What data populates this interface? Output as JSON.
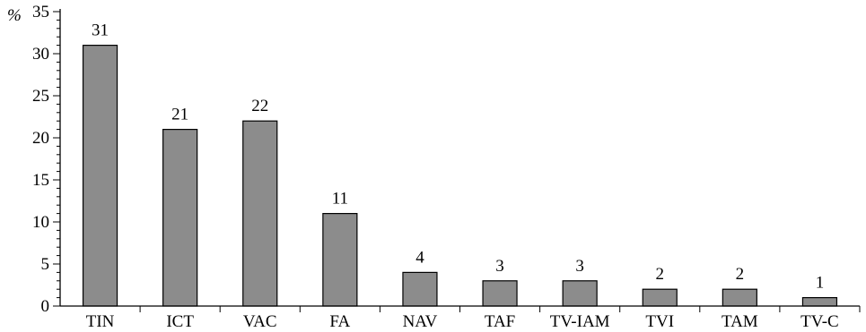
{
  "chart_data": {
    "type": "bar",
    "categories": [
      "TIN",
      "ICT",
      "VAC",
      "FA",
      "NAV",
      "TAF",
      "TV-IAM",
      "TVI",
      "TAM",
      "TV-C"
    ],
    "values": [
      31,
      21,
      22,
      11,
      4,
      3,
      3,
      2,
      2,
      1
    ],
    "data_labels": [
      "31",
      "21",
      "22",
      "11",
      "4",
      "3",
      "3",
      "2",
      "2",
      "1"
    ],
    "ylabel": "%",
    "ylim": [
      0,
      35
    ],
    "yticks": [
      0,
      5,
      10,
      15,
      20,
      25,
      30,
      35
    ],
    "minor_tick_step": 1,
    "grid": false,
    "legend": "none",
    "bar_color": "#8c8c8c",
    "edge_color": "#000000"
  }
}
